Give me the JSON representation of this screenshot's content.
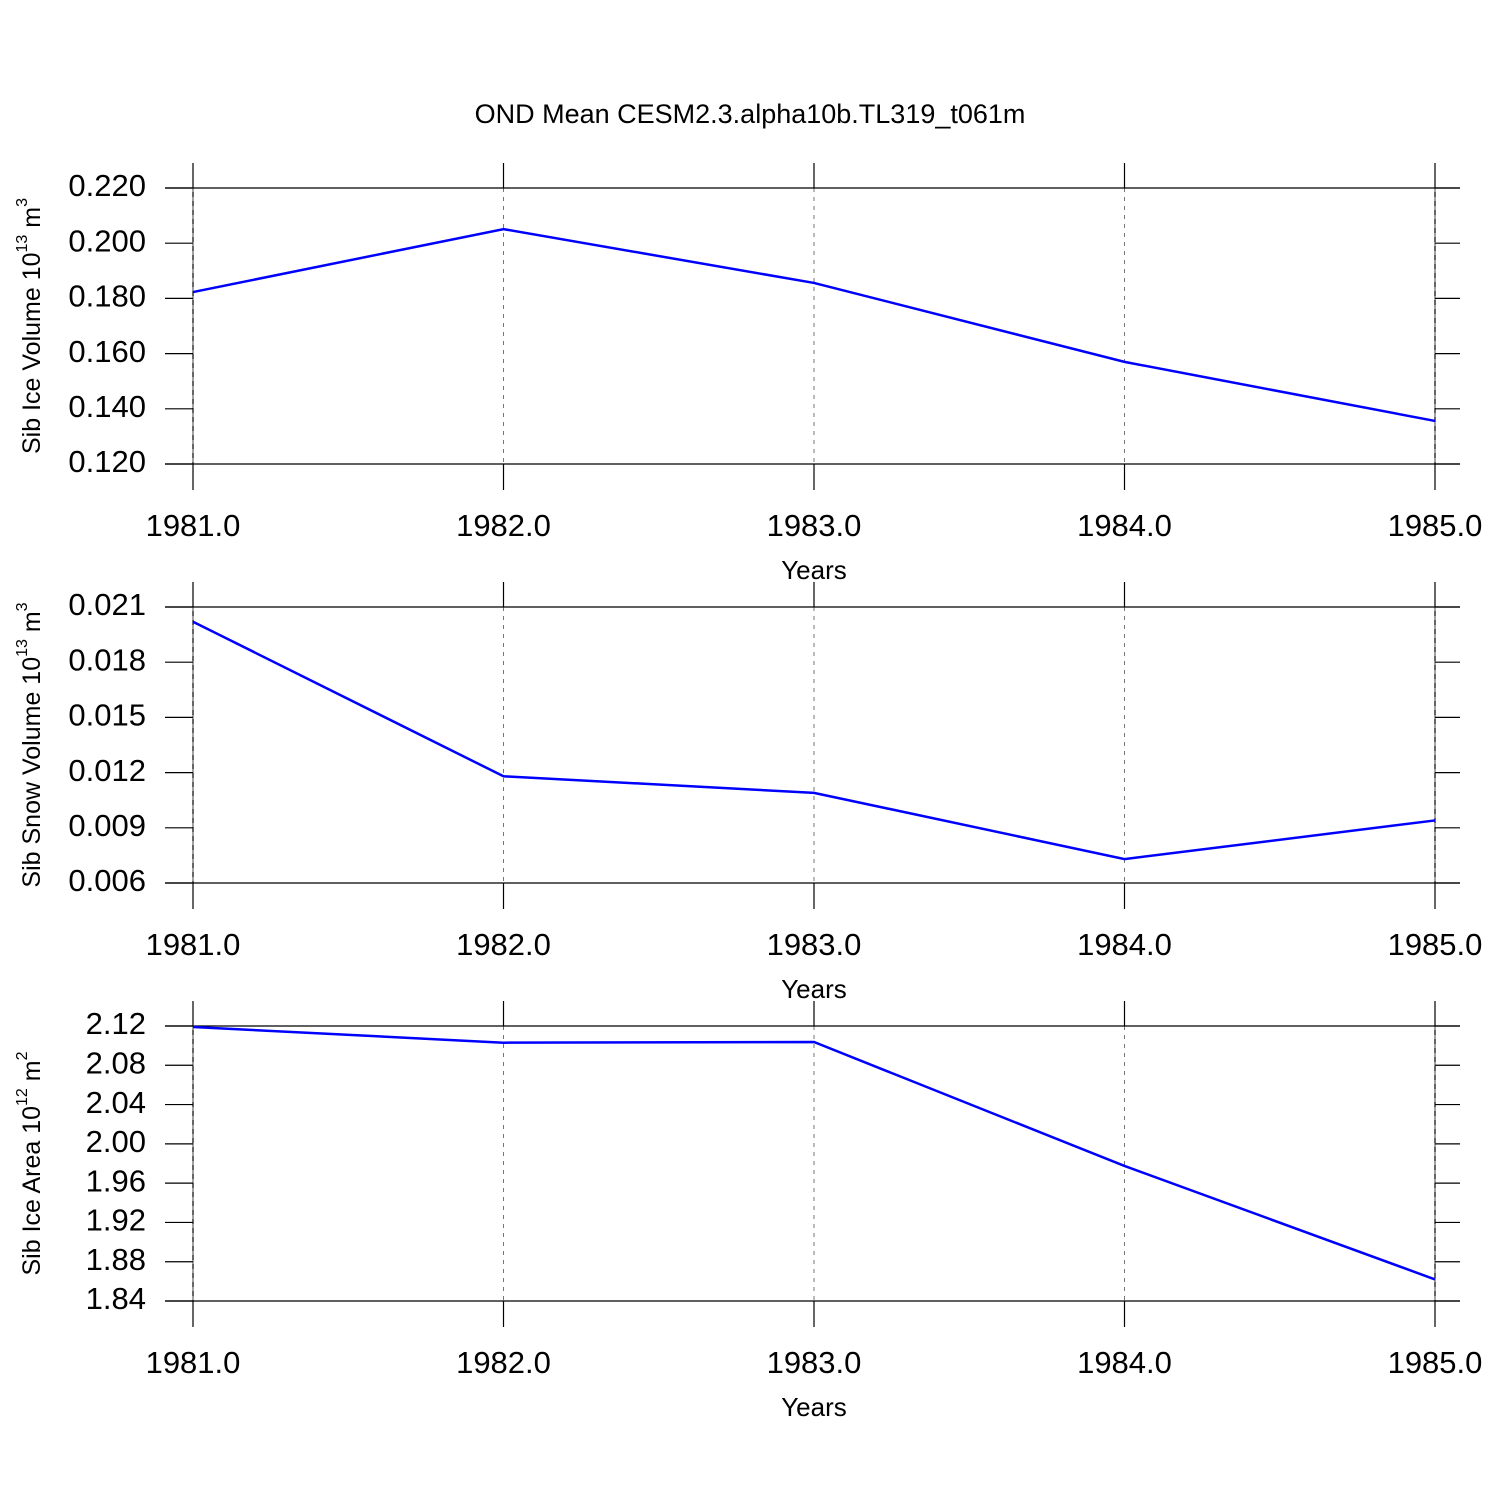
{
  "chart_data": [
    {
      "type": "line",
      "title": "OND Mean CESM2.3.alpha10b.TL319_t061m",
      "xlabel": "Years",
      "ylabel": [
        "Sib Ice Volume 10",
        "13",
        " m",
        "3"
      ],
      "x": [
        1981,
        1982,
        1983,
        1984,
        1985
      ],
      "series": [
        {
          "color": "#0000ff",
          "values": [
            0.1823,
            0.2051,
            0.1856,
            0.157,
            0.1356
          ]
        }
      ],
      "xlim": [
        1981,
        1985
      ],
      "xticks": [
        {
          "value": 1981,
          "label": "1981.0"
        },
        {
          "value": 1982,
          "label": "1982.0"
        },
        {
          "value": 1983,
          "label": "1983.0"
        },
        {
          "value": 1984,
          "label": "1984.0"
        },
        {
          "value": 1985,
          "label": "1985.0"
        }
      ],
      "ylim": [
        0.12,
        0.22
      ],
      "yticks": [
        {
          "value": 0.12,
          "label": "0.120"
        },
        {
          "value": 0.14,
          "label": "0.140"
        },
        {
          "value": 0.16,
          "label": "0.160"
        },
        {
          "value": 0.18,
          "label": "0.180"
        },
        {
          "value": 0.2,
          "label": "0.200"
        },
        {
          "value": 0.22,
          "label": "0.220"
        }
      ],
      "grid": true
    },
    {
      "type": "line",
      "xlabel": "Years",
      "ylabel": [
        "Sib Snow Volume 10",
        "13",
        " m",
        "3"
      ],
      "x": [
        1981,
        1982,
        1983,
        1984,
        1985
      ],
      "series": [
        {
          "color": "#0000ff",
          "values": [
            0.0202,
            0.0118,
            0.0109,
            0.0073,
            0.0094
          ]
        }
      ],
      "xlim": [
        1981,
        1985
      ],
      "xticks": [
        {
          "value": 1981,
          "label": "1981.0"
        },
        {
          "value": 1982,
          "label": "1982.0"
        },
        {
          "value": 1983,
          "label": "1983.0"
        },
        {
          "value": 1984,
          "label": "1984.0"
        },
        {
          "value": 1985,
          "label": "1985.0"
        }
      ],
      "ylim": [
        0.006,
        0.021
      ],
      "yticks": [
        0.006,
        0.009,
        0.012,
        0.015,
        0.018,
        0.021
      ],
      "grid": true
    },
    {
      "type": "line",
      "xlabel": "Years",
      "ylabel": [
        "Sib Ice Area 10",
        "12",
        " m",
        "2"
      ],
      "x": [
        1981,
        1982,
        1983,
        1984,
        1985
      ],
      "series": [
        {
          "color": "#0000ff",
          "values": [
            2.119,
            2.103,
            2.1037,
            1.9775,
            1.862
          ]
        }
      ],
      "xlim": [
        1981,
        1985
      ],
      "xticks": [
        {
          "value": 1981,
          "label": "1981.0"
        },
        {
          "value": 1982,
          "label": "1982.0"
        },
        {
          "value": 1983,
          "label": "1983.0"
        },
        {
          "value": 1984,
          "label": "1984.0"
        },
        {
          "value": 1985,
          "label": "1985.0"
        }
      ],
      "ylim": [
        1.84,
        2.12
      ],
      "yticks": [
        1.84,
        1.88,
        1.92,
        1.96,
        {
          "value": 2.0,
          "label": "2.00"
        },
        2.04,
        2.08,
        2.12
      ],
      "grid": true
    }
  ]
}
